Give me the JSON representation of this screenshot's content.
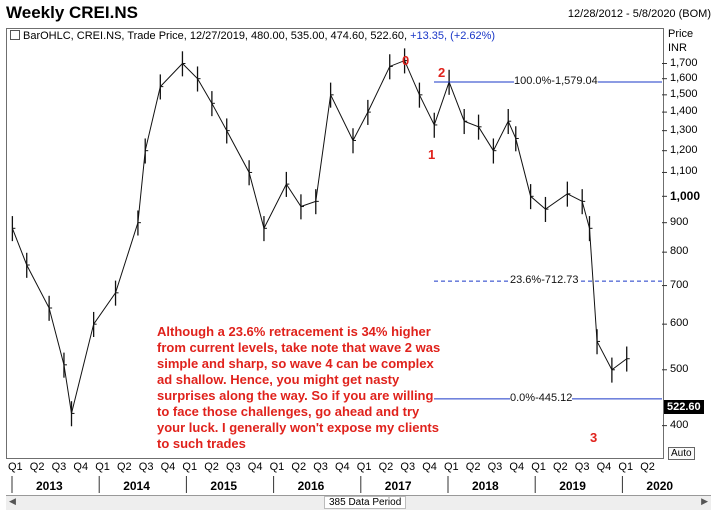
{
  "header": {
    "title": "Weekly CREI.NS",
    "date_range": "12/28/2012 - 5/8/2020 (BOM)"
  },
  "legend": {
    "text": "BarOHLC, CREI.NS, Trade Price, 12/27/2019, 480.00, 535.00, 474.60, 522.60,",
    "change": "+13.35, (+2.62%)"
  },
  "yaxis": {
    "title": "Price",
    "unit": "INR",
    "ticks": [
      "1,700",
      "1,600",
      "1,500",
      "1,400",
      "1,300",
      "1,200",
      "1,100",
      "1,000",
      "900",
      "800",
      "700",
      "600",
      "500",
      "400"
    ],
    "last_price": "522.60",
    "auto_label": "Auto"
  },
  "xaxis": {
    "quarters": [
      "Q1",
      "Q2",
      "Q3",
      "Q4",
      "Q1",
      "Q2",
      "Q3",
      "Q4",
      "Q1",
      "Q2",
      "Q3",
      "Q4",
      "Q1",
      "Q2",
      "Q3",
      "Q4",
      "Q1",
      "Q2",
      "Q3",
      "Q4",
      "Q1",
      "Q2",
      "Q3",
      "Q4",
      "Q1",
      "Q2",
      "Q3",
      "Q4",
      "Q1",
      "Q2"
    ],
    "years": [
      "2013",
      "2014",
      "2015",
      "2016",
      "2017",
      "2018",
      "2019",
      "2020"
    ]
  },
  "footer": {
    "period": "385 Data Period"
  },
  "annotations": {
    "fib": [
      {
        "label": "100.0%-1,579.04",
        "value": 1579.04,
        "style": "solid"
      },
      {
        "label": "23.6%-712.73",
        "value": 712.73,
        "style": "dashed"
      },
      {
        "label": "0.0%-445.12",
        "value": 445.12,
        "style": "solid"
      }
    ],
    "waves": [
      {
        "label": "0",
        "value": 1720
      },
      {
        "label": "2",
        "value": 1640
      },
      {
        "label": "1",
        "value": 1180
      },
      {
        "label": "3",
        "value": 380
      }
    ],
    "note": "Although a 23.6% retracement is 34% higher from current levels, take note that wave 2 was simple and sharp, so wave 4 can be complex ad shallow. Hence, you might get nasty surprises along the way. So if you are willing to face those challenges, go ahead and try your luck. I generally won't expose my clients to such trades"
  },
  "colors": {
    "bars": "#111111",
    "fib_line": "#1a37c7",
    "annotation": "#e0221c"
  },
  "chart_data": {
    "type": "bar",
    "title": "Weekly CREI.NS",
    "ylabel": "Price",
    "ylim": [
      360,
      1780
    ],
    "scale": "log",
    "x": [
      "2013-01",
      "2013-03",
      "2013-06",
      "2013-08",
      "2013-09",
      "2013-12",
      "2014-03",
      "2014-06",
      "2014-07",
      "2014-09",
      "2014-12",
      "2015-02",
      "2015-04",
      "2015-06",
      "2015-09",
      "2015-11",
      "2016-02",
      "2016-04",
      "2016-06",
      "2016-08",
      "2016-11",
      "2017-01",
      "2017-04",
      "2017-06",
      "2017-08",
      "2017-10",
      "2017-12",
      "2018-02",
      "2018-04",
      "2018-06",
      "2018-08",
      "2018-09",
      "2018-11",
      "2019-01",
      "2019-04",
      "2019-06",
      "2019-07",
      "2019-08",
      "2019-10",
      "2019-12"
    ],
    "series": [
      {
        "values": [
          880,
          760,
          640,
          510,
          420,
          600,
          680,
          900,
          1200,
          1550,
          1700,
          1600,
          1450,
          1300,
          1100,
          880,
          1050,
          960,
          980,
          1500,
          1250,
          1400,
          1680,
          1720,
          1500,
          1330,
          1579,
          1350,
          1320,
          1200,
          1350,
          1260,
          1000,
          950,
          1010,
          980,
          880,
          560,
          500,
          522.6
        ]
      }
    ]
  }
}
